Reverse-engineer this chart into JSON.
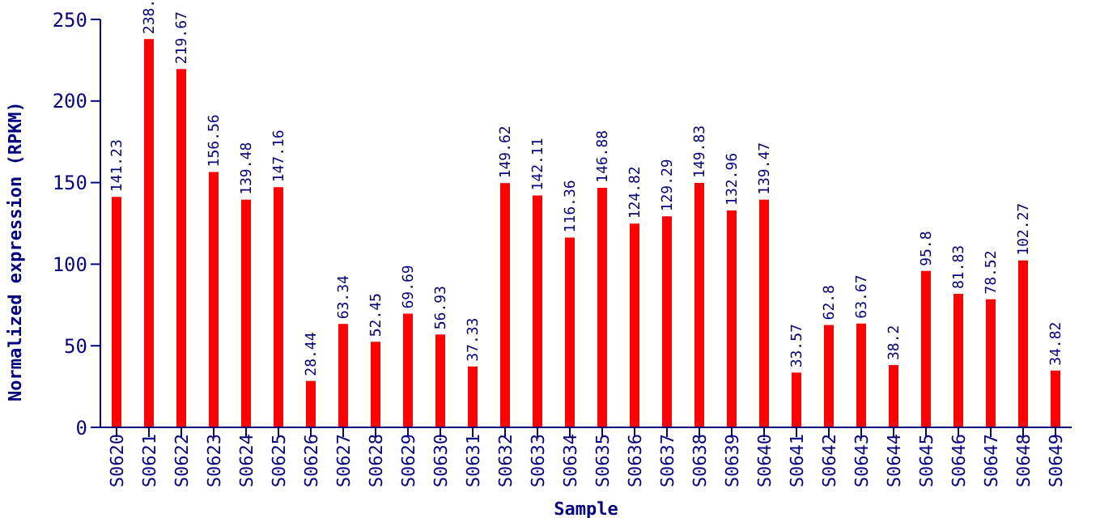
{
  "chart_data": {
    "type": "bar",
    "xlabel": "Sample",
    "ylabel": "Normalized expression (RPKM)",
    "categories": [
      "S0620",
      "S0621",
      "S0622",
      "S0623",
      "S0624",
      "S0625",
      "S0626",
      "S0627",
      "S0628",
      "S0629",
      "S0630",
      "S0631",
      "S0632",
      "S0633",
      "S0634",
      "S0635",
      "S0636",
      "S0637",
      "S0638",
      "S0639",
      "S0640",
      "S0641",
      "S0642",
      "S0643",
      "S0644",
      "S0645",
      "S0646",
      "S0647",
      "S0648",
      "S0649"
    ],
    "values": [
      141.23,
      238,
      219.67,
      156.56,
      139.48,
      147.16,
      28.44,
      63.34,
      52.45,
      69.69,
      56.93,
      37.33,
      149.62,
      142.11,
      116.36,
      146.88,
      124.82,
      129.29,
      149.83,
      132.96,
      139.47,
      33.57,
      62.8,
      63.67,
      38.2,
      95.8,
      81.83,
      78.52,
      102.27,
      34.82
    ],
    "value_labels": [
      "141.23",
      "238.",
      "219.67",
      "156.56",
      "139.48",
      "147.16",
      "28.44",
      "63.34",
      "52.45",
      "69.69",
      "56.93",
      "37.33",
      "149.62",
      "142.11",
      "116.36",
      "146.88",
      "124.82",
      "129.29",
      "149.83",
      "132.96",
      "139.47",
      "33.57",
      "62.8",
      "63.67",
      "38.2",
      "95.8",
      "81.83",
      "78.52",
      "102.27",
      "34.82"
    ],
    "color": "#ff0000",
    "ylim": [
      0,
      250
    ],
    "yticks": [
      0,
      50,
      100,
      150,
      200,
      250
    ],
    "grid": false,
    "legend": false
  }
}
